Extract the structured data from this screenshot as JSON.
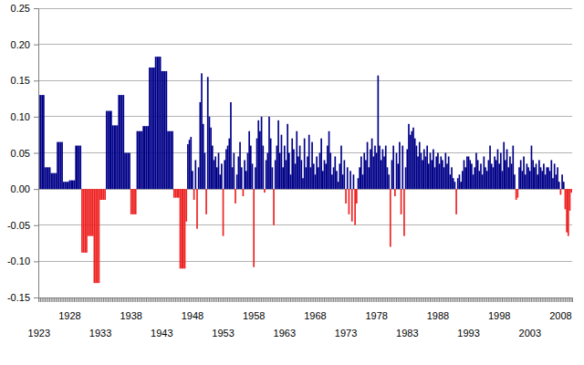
{
  "chart_data": {
    "type": "bar",
    "categories": [
      "1923",
      null,
      null,
      null,
      null,
      null,
      null,
      null,
      null,
      null,
      null,
      null,
      null,
      null,
      null,
      null,
      null,
      null,
      null,
      null,
      "1928",
      null,
      null,
      null,
      null,
      null,
      null,
      null,
      null,
      null,
      null,
      null,
      null,
      null,
      null,
      null,
      null,
      null,
      null,
      null,
      "1933",
      null,
      null,
      null,
      null,
      null,
      null,
      null,
      null,
      null,
      null,
      null,
      null,
      null,
      null,
      null,
      null,
      null,
      null,
      null,
      "1938",
      null,
      null,
      null,
      null,
      null,
      null,
      null,
      null,
      null,
      null,
      null,
      null,
      null,
      null,
      null,
      null,
      null,
      null,
      null,
      "1943",
      null,
      null,
      null,
      null,
      null,
      null,
      null,
      null,
      null,
      null,
      null,
      null,
      null,
      null,
      null,
      null,
      null,
      null,
      null,
      "1948",
      null,
      null,
      null,
      null,
      null,
      null,
      null,
      null,
      null,
      null,
      null,
      null,
      null,
      null,
      null,
      null,
      null,
      null,
      null,
      "1953",
      null,
      null,
      null,
      null,
      null,
      null,
      null,
      null,
      null,
      null,
      null,
      null,
      null,
      null,
      null,
      null,
      null,
      null,
      null,
      "1958",
      null,
      null,
      null,
      null,
      null,
      null,
      null,
      null,
      null,
      null,
      null,
      null,
      null,
      null,
      null,
      null,
      null,
      null,
      null,
      "1963",
      null,
      null,
      null,
      null,
      null,
      null,
      null,
      null,
      null,
      null,
      null,
      null,
      null,
      null,
      null,
      null,
      null,
      null,
      null,
      "1968",
      null,
      null,
      null,
      null,
      null,
      null,
      null,
      null,
      null,
      null,
      null,
      null,
      null,
      null,
      null,
      null,
      null,
      null,
      null,
      "1973",
      null,
      null,
      null,
      null,
      null,
      null,
      null,
      null,
      null,
      null,
      null,
      null,
      null,
      null,
      null,
      null,
      null,
      null,
      null,
      "1978",
      null,
      null,
      null,
      null,
      null,
      null,
      null,
      null,
      null,
      null,
      null,
      null,
      null,
      null,
      null,
      null,
      null,
      null,
      null,
      "1983",
      null,
      null,
      null,
      null,
      null,
      null,
      null,
      null,
      null,
      null,
      null,
      null,
      null,
      null,
      null,
      null,
      null,
      null,
      null,
      "1988",
      null,
      null,
      null,
      null,
      null,
      null,
      null,
      null,
      null,
      null,
      null,
      null,
      null,
      null,
      null,
      null,
      null,
      null,
      null,
      "1993",
      null,
      null,
      null,
      null,
      null,
      null,
      null,
      null,
      null,
      null,
      null,
      null,
      null,
      null,
      null,
      null,
      null,
      null,
      null,
      "1998",
      null,
      null,
      null,
      null,
      null,
      null,
      null,
      null,
      null,
      null,
      null,
      null,
      null,
      null,
      null,
      null,
      null,
      null,
      null,
      "2003",
      null,
      null,
      null,
      null,
      null,
      null,
      null,
      null,
      null,
      null,
      null,
      null,
      null,
      null,
      null,
      null,
      null,
      null,
      null,
      "2008",
      null,
      null,
      null,
      null,
      null,
      null,
      null
    ],
    "values": [
      0.13,
      0.13,
      0.13,
      0.13,
      0.03,
      0.03,
      0.03,
      0.03,
      0.022,
      0.022,
      0.022,
      0.022,
      0.065,
      0.065,
      0.065,
      0.065,
      0.01,
      0.01,
      0.01,
      0.01,
      0.012,
      0.012,
      0.012,
      0.012,
      0.06,
      0.06,
      0.06,
      0.06,
      -0.088,
      -0.088,
      -0.088,
      -0.088,
      -0.065,
      -0.065,
      -0.065,
      -0.065,
      -0.13,
      -0.13,
      -0.13,
      -0.13,
      -0.015,
      -0.015,
      -0.015,
      -0.015,
      0.108,
      0.108,
      0.108,
      0.108,
      0.088,
      0.088,
      0.088,
      0.088,
      0.13,
      0.13,
      0.13,
      0.13,
      0.05,
      0.05,
      0.05,
      0.05,
      -0.035,
      -0.035,
      -0.035,
      -0.035,
      0.08,
      0.08,
      0.08,
      0.08,
      0.087,
      0.087,
      0.087,
      0.087,
      0.168,
      0.168,
      0.168,
      0.168,
      0.183,
      0.183,
      0.183,
      0.183,
      0.163,
      0.163,
      0.163,
      0.163,
      0.08,
      0.08,
      0.08,
      0.08,
      -0.012,
      -0.012,
      -0.012,
      -0.012,
      -0.11,
      -0.11,
      -0.11,
      -0.11,
      -0.045,
      0.062,
      0.068,
      0.072,
      0.025,
      -0.015,
      0.04,
      -0.055,
      0.03,
      0.12,
      0.16,
      0.09,
      0.05,
      -0.035,
      0.155,
      0.1,
      0.085,
      0.06,
      0.04,
      0.045,
      0.03,
      0.05,
      0.02,
      0.035,
      -0.065,
      0.04,
      0.055,
      0.06,
      0.07,
      0.12,
      0.03,
      0.05,
      -0.02,
      0.02,
      0.045,
      0.065,
      0.03,
      -0.01,
      0.04,
      0.025,
      0.05,
      0.08,
      0.06,
      0.035,
      -0.108,
      0.03,
      0.07,
      0.095,
      0.08,
      0.1,
      0.06,
      -0.005,
      0.04,
      0.05,
      0.1,
      0.07,
      0.03,
      -0.05,
      0.04,
      0.06,
      0.095,
      0.05,
      0.075,
      0.03,
      0.06,
      0.04,
      0.09,
      0.05,
      0.02,
      0.07,
      0.055,
      0.035,
      0.08,
      0.045,
      0.06,
      0.04,
      0.015,
      0.07,
      0.03,
      0.045,
      0.075,
      0.03,
      0.065,
      0.035,
      0.02,
      0.045,
      0.03,
      0.05,
      0.07,
      0.025,
      0.04,
      0.035,
      0.06,
      0.08,
      0.05,
      0.02,
      0.03,
      0.045,
      0.025,
      0.01,
      0.035,
      0.06,
      0.02,
      0.04,
      -0.02,
      0.03,
      -0.035,
      0.025,
      -0.045,
      0.02,
      -0.05,
      -0.02,
      0.015,
      0.03,
      0.045,
      0.02,
      0.05,
      0.04,
      0.065,
      0.03,
      0.055,
      0.07,
      0.045,
      0.06,
      0.05,
      0.157,
      0.06,
      0.04,
      0.055,
      0.045,
      0.06,
      0.03,
      0.02,
      -0.08,
      0.04,
      0.06,
      -0.01,
      0.05,
      0.035,
      0.065,
      -0.035,
      0.06,
      -0.065,
      0.03,
      0.055,
      0.09,
      0.075,
      0.08,
      0.085,
      0.07,
      0.06,
      0.045,
      0.065,
      0.05,
      0.04,
      0.055,
      0.045,
      0.06,
      0.035,
      0.05,
      0.04,
      0.055,
      0.03,
      0.045,
      0.05,
      0.035,
      0.045,
      0.04,
      0.03,
      0.05,
      0.035,
      0.045,
      0.02,
      0.03,
      0.015,
      0.01,
      -0.035,
      0.015,
      0.02,
      0.01,
      0.025,
      0.04,
      0.03,
      0.045,
      0.045,
      0.04,
      0.035,
      0.02,
      0.03,
      0.05,
      0.04,
      0.025,
      0.035,
      0.02,
      0.045,
      0.03,
      0.025,
      0.04,
      0.06,
      0.035,
      0.03,
      0.045,
      0.04,
      0.055,
      0.035,
      0.05,
      0.025,
      0.065,
      0.04,
      0.055,
      0.03,
      0.045,
      0.035,
      0.06,
      0.02,
      -0.015,
      -0.012,
      0.03,
      0.04,
      0.025,
      0.045,
      0.02,
      0.035,
      0.03,
      0.025,
      0.06,
      0.04,
      0.03,
      0.035,
      0.02,
      0.04,
      0.03,
      0.025,
      0.035,
      0.02,
      0.03,
      0.03,
      0.025,
      0.04,
      0.015,
      0.035,
      0.02,
      0.03,
      0.01,
      -0.008,
      0.02,
      0.01,
      -0.028,
      -0.06,
      -0.065,
      -0.03,
      -0.005
    ],
    "colors": [
      "#008",
      "#008",
      "#008",
      "#008",
      "#008",
      "#008",
      "#008",
      "#008",
      "#008",
      "#008",
      "#008",
      "#008",
      "#008",
      "#008",
      "#008",
      "#008",
      "#008",
      "#008",
      "#008",
      "#008",
      "#008",
      "#008",
      "#008",
      "#008",
      "#008",
      "#008",
      "#008",
      "#008",
      "#e22",
      "#e22",
      "#e22",
      "#e22",
      "#e22",
      "#e22",
      "#e22",
      "#e22",
      "#e22",
      "#e22",
      "#e22",
      "#e22",
      "#e22",
      "#e22",
      "#e22",
      "#e22",
      "#008",
      "#008",
      "#008",
      "#008",
      "#008",
      "#008",
      "#008",
      "#008",
      "#008",
      "#008",
      "#008",
      "#008",
      "#008",
      "#008",
      "#008",
      "#008",
      "#e22",
      "#e22",
      "#e22",
      "#e22",
      "#008",
      "#008",
      "#008",
      "#008",
      "#008",
      "#008",
      "#008",
      "#008",
      "#008",
      "#008",
      "#008",
      "#008",
      "#008",
      "#008",
      "#008",
      "#008",
      "#008",
      "#008",
      "#008",
      "#008",
      "#008",
      "#008",
      "#008",
      "#008",
      "#e22",
      "#e22",
      "#e22",
      "#e22",
      "#e22",
      "#e22",
      "#e22",
      "#e22",
      "#e22",
      "#008",
      "#008",
      "#008",
      "#008",
      "#e22",
      "#008",
      "#e22",
      "#008",
      "#008",
      "#008",
      "#008",
      "#008",
      "#e22",
      "#008",
      "#008",
      "#008",
      "#008",
      "#008",
      "#008",
      "#008",
      "#008",
      "#008",
      "#008",
      "#e22",
      "#008",
      "#008",
      "#008",
      "#008",
      "#008",
      "#008",
      "#008",
      "#e22",
      "#008",
      "#008",
      "#008",
      "#008",
      "#e22",
      "#008",
      "#008",
      "#008",
      "#008",
      "#008",
      "#008",
      "#e22",
      "#008",
      "#008",
      "#008",
      "#008",
      "#008",
      "#008",
      "#e22",
      "#008",
      "#008",
      "#008",
      "#008",
      "#008",
      "#e22",
      "#008",
      "#008",
      "#008",
      "#008",
      "#008",
      "#008",
      "#008",
      "#008",
      "#008",
      "#008",
      "#008",
      "#008",
      "#008",
      "#008",
      "#008",
      "#008",
      "#008",
      "#008",
      "#008",
      "#008",
      "#008",
      "#008",
      "#008",
      "#008",
      "#008",
      "#008",
      "#008",
      "#008",
      "#008",
      "#008",
      "#008",
      "#008",
      "#008",
      "#008",
      "#008",
      "#008",
      "#008",
      "#008",
      "#008",
      "#008",
      "#008",
      "#008",
      "#008",
      "#008",
      "#008",
      "#008",
      "#e22",
      "#008",
      "#e22",
      "#008",
      "#e22",
      "#008",
      "#e22",
      "#e22",
      "#008",
      "#008",
      "#008",
      "#008",
      "#008",
      "#008",
      "#008",
      "#008",
      "#008",
      "#008",
      "#008",
      "#008",
      "#008",
      "#008",
      "#008",
      "#008",
      "#008",
      "#008",
      "#008",
      "#008",
      "#008",
      "#e22",
      "#008",
      "#008",
      "#e22",
      "#008",
      "#008",
      "#008",
      "#e22",
      "#008",
      "#e22",
      "#008",
      "#008",
      "#008",
      "#008",
      "#008",
      "#008",
      "#008",
      "#008",
      "#008",
      "#008",
      "#008",
      "#008",
      "#008",
      "#008",
      "#008",
      "#008",
      "#008",
      "#008",
      "#008",
      "#008",
      "#008",
      "#008",
      "#008",
      "#008",
      "#008",
      "#008",
      "#008",
      "#008",
      "#008",
      "#008",
      "#008",
      "#008",
      "#008",
      "#e22",
      "#008",
      "#008",
      "#008",
      "#008",
      "#008",
      "#008",
      "#008",
      "#008",
      "#008",
      "#008",
      "#008",
      "#008",
      "#008",
      "#008",
      "#008",
      "#008",
      "#008",
      "#008",
      "#008",
      "#008",
      "#008",
      "#008",
      "#008",
      "#008",
      "#008",
      "#008",
      "#008",
      "#008",
      "#008",
      "#008",
      "#008",
      "#008",
      "#008",
      "#008",
      "#008",
      "#008",
      "#008",
      "#008",
      "#e22",
      "#e22",
      "#008",
      "#008",
      "#008",
      "#008",
      "#008",
      "#008",
      "#008",
      "#008",
      "#008",
      "#008",
      "#008",
      "#008",
      "#008",
      "#008",
      "#008",
      "#008",
      "#008",
      "#008",
      "#008",
      "#008",
      "#008",
      "#008",
      "#008",
      "#008",
      "#008",
      "#008",
      "#008",
      "#e22",
      "#008",
      "#008",
      "#e22",
      "#e22",
      "#e22",
      "#e22",
      "#e22"
    ],
    "ylim": [
      -0.15,
      0.25
    ],
    "yticks": [
      {
        "value": -0.15,
        "label": "-0.15"
      },
      {
        "value": -0.1,
        "label": "-0.10"
      },
      {
        "value": -0.05,
        "label": "-0.05"
      },
      {
        "value": 0,
        "label": "0.00"
      },
      {
        "value": 0.05,
        "label": "0.05"
      },
      {
        "value": 0.1,
        "label": "0.10"
      },
      {
        "value": 0.15,
        "label": "0.15"
      },
      {
        "value": 0.2,
        "label": "0.20"
      },
      {
        "value": 0.25,
        "label": "0.25"
      }
    ],
    "grid": true
  }
}
